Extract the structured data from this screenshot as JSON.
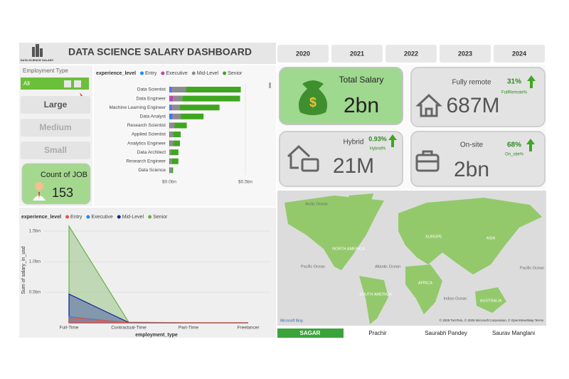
{
  "header": {
    "logo_text": "DATA SCIENCE SALARY",
    "title": "DATA SCIENCE SALARY DASHBOARD"
  },
  "year_buttons": [
    "2020",
    "2021",
    "2022",
    "2023",
    "2024"
  ],
  "slicer": {
    "label": "Employment Type",
    "selected": "All"
  },
  "size_buttons": [
    "Large",
    "Medium",
    "Small"
  ],
  "count_card": {
    "label": "Count of JOB",
    "value": 153
  },
  "kpis": {
    "total": {
      "label": "Total Salary",
      "value": "2bn"
    },
    "remote": {
      "label": "Fully remote",
      "value": "687M",
      "pct": "31%",
      "pct_label": "FullRemote%"
    },
    "hybrid": {
      "label": "Hybrid",
      "value": "21M",
      "pct": "0.93%",
      "pct_label": "Hybrid%"
    },
    "onsite": {
      "label": "On-site",
      "value": "2bn",
      "pct": "68%",
      "pct_label": "On_site%"
    }
  },
  "map": {
    "labels": [
      "Arctic Ocean",
      "NORTH AMERICA",
      "EUROPE",
      "ASIA",
      "Pacific Ocean",
      "Atlantic Ocean",
      "AFRICA",
      "SOUTH AMERICA",
      "Indian Ocean",
      "AUSTRALIA",
      "Pacific Ocean"
    ],
    "logo": "Microsoft Bing",
    "attribution": "© 2025 TomTom, © 2025 Microsoft Corporation, © OpenStreetMap Terms"
  },
  "tabs": [
    "SAGAR",
    "Prachir",
    "Saurabh Pandey",
    "Saurav Manglani"
  ],
  "chart_data": [
    {
      "type": "bar",
      "orientation": "horizontal",
      "stacked": true,
      "legend_title": "experience_level",
      "categories": [
        "Data Scientist",
        "Data Engineer",
        "Machine Learning Engineer",
        "Data Analyst",
        "Research Scientist",
        "Applied Scientist",
        "Analytics Engineer",
        "Data Architect",
        "Research Engineer",
        "Data Science"
      ],
      "series": [
        {
          "name": "Entry",
          "color": "#118dff",
          "values": [
            0.01,
            0.005,
            0.01,
            0.02,
            0.005,
            0.005,
            0,
            0,
            0.005,
            0.005
          ]
        },
        {
          "name": "Executive",
          "color": "#c83dab",
          "values": [
            0.01,
            0.02,
            0.01,
            0.005,
            0,
            0,
            0.005,
            0,
            0,
            0
          ]
        },
        {
          "name": "Mid-Level",
          "color": "#8c8c8c",
          "values": [
            0.09,
            0.06,
            0.05,
            0.05,
            0.03,
            0.02,
            0.02,
            0.01,
            0.01,
            0.01
          ]
        },
        {
          "name": "Senior",
          "color": "#3fa61f",
          "values": [
            0.36,
            0.38,
            0.26,
            0.15,
            0.08,
            0.05,
            0.045,
            0.05,
            0.045,
            0.01
          ]
        }
      ],
      "xlim": [
        0,
        0.5
      ],
      "xticks": [
        {
          "value": 0,
          "label": "$0.0bn"
        },
        {
          "value": 0.5,
          "label": "$0.5bn"
        }
      ]
    },
    {
      "type": "area",
      "legend_title": "experience_level",
      "x_label": "employment_type",
      "y_label": "Sum of salary_in_usd",
      "categories": [
        "Full-Time",
        "Contractual-Time",
        "Part-Time",
        "Freelancer"
      ],
      "series": [
        {
          "name": "Entry",
          "color": "#e8553b",
          "values": [
            0.09,
            0,
            0,
            0
          ]
        },
        {
          "name": "Executive",
          "color": "#118dff",
          "values": [
            0.1,
            0,
            0,
            0
          ]
        },
        {
          "name": "Mid-Level",
          "color": "#12239e",
          "values": [
            0.47,
            0.005,
            0,
            0
          ]
        },
        {
          "name": "Senior",
          "color": "#6ab04c",
          "values": [
            1.58,
            0.01,
            0,
            0
          ]
        }
      ],
      "ylim": [
        0,
        1.6
      ],
      "yticks": [
        {
          "value": 0.5,
          "label": "0.5bn"
        },
        {
          "value": 1.0,
          "label": "1.0bn"
        },
        {
          "value": 1.5,
          "label": "1.5bn"
        }
      ]
    }
  ]
}
